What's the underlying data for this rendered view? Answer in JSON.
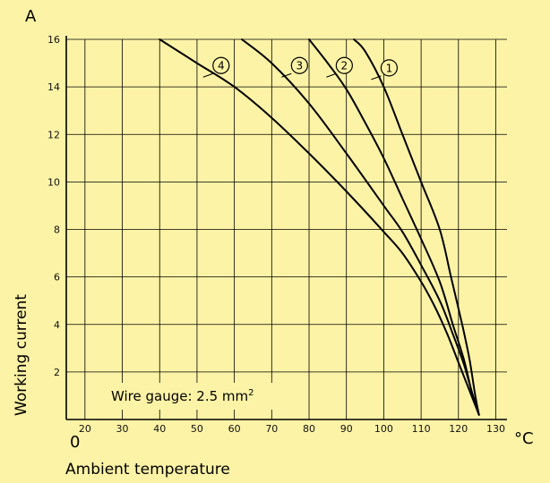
{
  "chart_data": {
    "type": "line",
    "xlabel": "Ambient temperature",
    "ylabel": "Working current",
    "y_unit": "A",
    "x_unit": "°C",
    "origin_label": "0",
    "xlim": [
      15,
      133
    ],
    "ylim": [
      0,
      16
    ],
    "x_ticks": [
      20,
      30,
      40,
      50,
      60,
      70,
      80,
      90,
      100,
      110,
      120,
      130
    ],
    "y_ticks": [
      2,
      4,
      6,
      8,
      10,
      12,
      14,
      16
    ],
    "grid": true,
    "annotation": {
      "text": "Wire gauge: 2.5 mm",
      "sup": "2"
    },
    "series": [
      {
        "name": "1",
        "points": [
          [
            92,
            16
          ],
          [
            95,
            15.5
          ],
          [
            100,
            14
          ],
          [
            105,
            12
          ],
          [
            110,
            10
          ],
          [
            115,
            8
          ],
          [
            118,
            6
          ],
          [
            121,
            4
          ],
          [
            123,
            2.5
          ],
          [
            124.5,
            1
          ],
          [
            125.5,
            0.2
          ]
        ]
      },
      {
        "name": "2",
        "points": [
          [
            80,
            16
          ],
          [
            85,
            15
          ],
          [
            90,
            13.9
          ],
          [
            95,
            12.5
          ],
          [
            100,
            11
          ],
          [
            105,
            9.3
          ],
          [
            110,
            7.6
          ],
          [
            115,
            5.8
          ],
          [
            118.5,
            4
          ],
          [
            121.5,
            2.5
          ],
          [
            123.5,
            1.2
          ],
          [
            125.5,
            0.2
          ]
        ]
      },
      {
        "name": "3",
        "points": [
          [
            62,
            16
          ],
          [
            70,
            15
          ],
          [
            80,
            13.3
          ],
          [
            90,
            11.2
          ],
          [
            100,
            9
          ],
          [
            105,
            7.9
          ],
          [
            110,
            6.5
          ],
          [
            115,
            5
          ],
          [
            118.5,
            3.6
          ],
          [
            121.5,
            2.3
          ],
          [
            123.5,
            1.2
          ],
          [
            125.5,
            0.2
          ]
        ]
      },
      {
        "name": "4",
        "points": [
          [
            40,
            16
          ],
          [
            50,
            15
          ],
          [
            60,
            14
          ],
          [
            70,
            12.7
          ],
          [
            80,
            11.2
          ],
          [
            90,
            9.6
          ],
          [
            100,
            7.9
          ],
          [
            105,
            7
          ],
          [
            110,
            5.8
          ],
          [
            113.5,
            4.8
          ],
          [
            117,
            3.6
          ],
          [
            120,
            2.4
          ],
          [
            123,
            1.2
          ],
          [
            125.5,
            0.2
          ]
        ]
      }
    ],
    "colors": {
      "background": "#fdf3a6",
      "line": "#000000"
    }
  }
}
